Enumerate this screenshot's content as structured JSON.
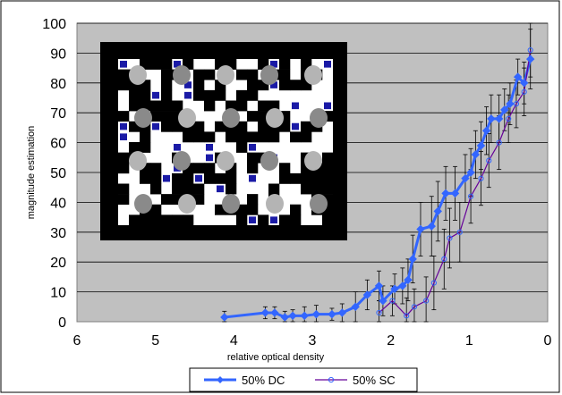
{
  "chart_data": {
    "type": "line",
    "title": "",
    "xlabel": "relative optical density",
    "ylabel": "magnitude estimation",
    "xlim": [
      6,
      0
    ],
    "ylim": [
      0,
      100
    ],
    "x_reversed": true,
    "x_ticks": [
      6,
      5,
      4,
      3,
      2,
      1,
      0
    ],
    "y_ticks": [
      0,
      10,
      20,
      30,
      40,
      50,
      60,
      70,
      80,
      90,
      100
    ],
    "grid": "horizontal",
    "legend_position": "bottom",
    "plot_background": "#c0c0c0",
    "series": [
      {
        "name": "50% DC",
        "color": "#3366ff",
        "marker": "diamond",
        "points": [
          {
            "x": 4.12,
            "y": 1.5,
            "err": 2
          },
          {
            "x": 3.6,
            "y": 3,
            "err": 2
          },
          {
            "x": 3.48,
            "y": 3,
            "err": 2
          },
          {
            "x": 3.35,
            "y": 1.5,
            "err": 2
          },
          {
            "x": 3.25,
            "y": 2,
            "err": 2
          },
          {
            "x": 3.1,
            "y": 2,
            "err": 3
          },
          {
            "x": 2.95,
            "y": 2.5,
            "err": 3
          },
          {
            "x": 2.75,
            "y": 2.5,
            "err": 2
          },
          {
            "x": 2.62,
            "y": 3,
            "err": 3
          },
          {
            "x": 2.45,
            "y": 5,
            "err": 5
          },
          {
            "x": 2.3,
            "y": 9,
            "err": 5
          },
          {
            "x": 2.15,
            "y": 12,
            "err": 5
          },
          {
            "x": 2.1,
            "y": 7,
            "err": 5
          },
          {
            "x": 1.95,
            "y": 11,
            "err": 5
          },
          {
            "x": 1.85,
            "y": 12,
            "err": 6
          },
          {
            "x": 1.78,
            "y": 14,
            "err": 7
          },
          {
            "x": 1.72,
            "y": 21,
            "err": 8
          },
          {
            "x": 1.62,
            "y": 31,
            "err": 9
          },
          {
            "x": 1.48,
            "y": 32,
            "err": 10
          },
          {
            "x": 1.4,
            "y": 37,
            "err": 10
          },
          {
            "x": 1.3,
            "y": 43,
            "err": 9
          },
          {
            "x": 1.18,
            "y": 43,
            "err": 9
          },
          {
            "x": 1.05,
            "y": 48,
            "err": 8
          },
          {
            "x": 0.98,
            "y": 50,
            "err": 8
          },
          {
            "x": 0.92,
            "y": 56,
            "err": 8
          },
          {
            "x": 0.85,
            "y": 59,
            "err": 8
          },
          {
            "x": 0.78,
            "y": 64,
            "err": 8
          },
          {
            "x": 0.72,
            "y": 68,
            "err": 8
          },
          {
            "x": 0.62,
            "y": 68,
            "err": 8
          },
          {
            "x": 0.55,
            "y": 71,
            "err": 7
          },
          {
            "x": 0.48,
            "y": 73,
            "err": 7
          },
          {
            "x": 0.38,
            "y": 82,
            "err": 6
          },
          {
            "x": 0.3,
            "y": 80,
            "err": 7
          },
          {
            "x": 0.22,
            "y": 88,
            "err": 10
          }
        ]
      },
      {
        "name": "50% SC",
        "color": "#660099",
        "marker": "circle",
        "points": [
          {
            "x": 2.15,
            "y": 3,
            "err": 4
          },
          {
            "x": 1.98,
            "y": 7,
            "err": 5
          },
          {
            "x": 1.8,
            "y": 2,
            "err": 6
          },
          {
            "x": 1.7,
            "y": 5,
            "err": 6
          },
          {
            "x": 1.55,
            "y": 7,
            "err": 8
          },
          {
            "x": 1.45,
            "y": 13,
            "err": 9
          },
          {
            "x": 1.32,
            "y": 21,
            "err": 10
          },
          {
            "x": 1.25,
            "y": 28,
            "err": 10
          },
          {
            "x": 1.12,
            "y": 30,
            "err": 10
          },
          {
            "x": 0.98,
            "y": 42,
            "err": 9
          },
          {
            "x": 0.85,
            "y": 48,
            "err": 9
          },
          {
            "x": 0.75,
            "y": 54,
            "err": 9
          },
          {
            "x": 0.62,
            "y": 60,
            "err": 9
          },
          {
            "x": 0.5,
            "y": 68,
            "err": 8
          },
          {
            "x": 0.4,
            "y": 73,
            "err": 8
          },
          {
            "x": 0.3,
            "y": 77,
            "err": 8
          },
          {
            "x": 0.22,
            "y": 91,
            "err": 9
          }
        ]
      }
    ]
  }
}
